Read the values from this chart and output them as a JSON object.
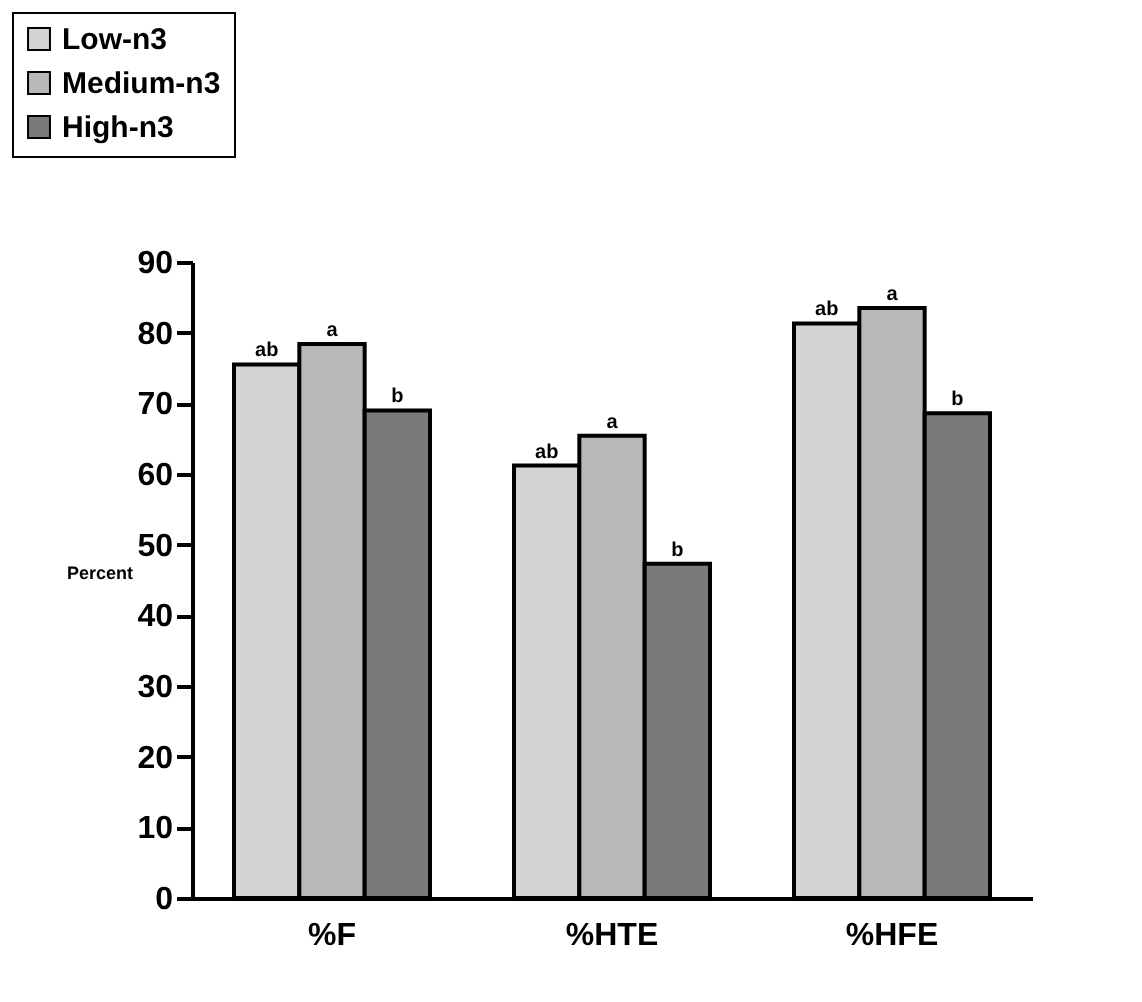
{
  "chart_data": {
    "type": "bar",
    "ylabel": "Percent",
    "categories": [
      "%F",
      "%HTE",
      "%HFE"
    ],
    "series": [
      {
        "name": "Low-n3",
        "color": "#d4d4d4",
        "values": [
          75.5,
          61.2,
          81.3
        ],
        "value_labels": [
          "ab",
          "ab",
          "ab"
        ]
      },
      {
        "name": "Medium-n3",
        "color": "#b8b8b8",
        "values": [
          78.4,
          65.4,
          83.5
        ],
        "value_labels": [
          "a",
          "a",
          "a"
        ]
      },
      {
        "name": "High-n3",
        "color": "#7a7a7a",
        "values": [
          69,
          47.3,
          68.6
        ],
        "value_labels": [
          "b",
          "b",
          "b"
        ]
      }
    ],
    "ylim": [
      0,
      90
    ],
    "yticks": [
      0,
      10,
      20,
      30,
      40,
      50,
      60,
      70,
      80,
      90
    ],
    "grid": false,
    "legend": "top left"
  }
}
